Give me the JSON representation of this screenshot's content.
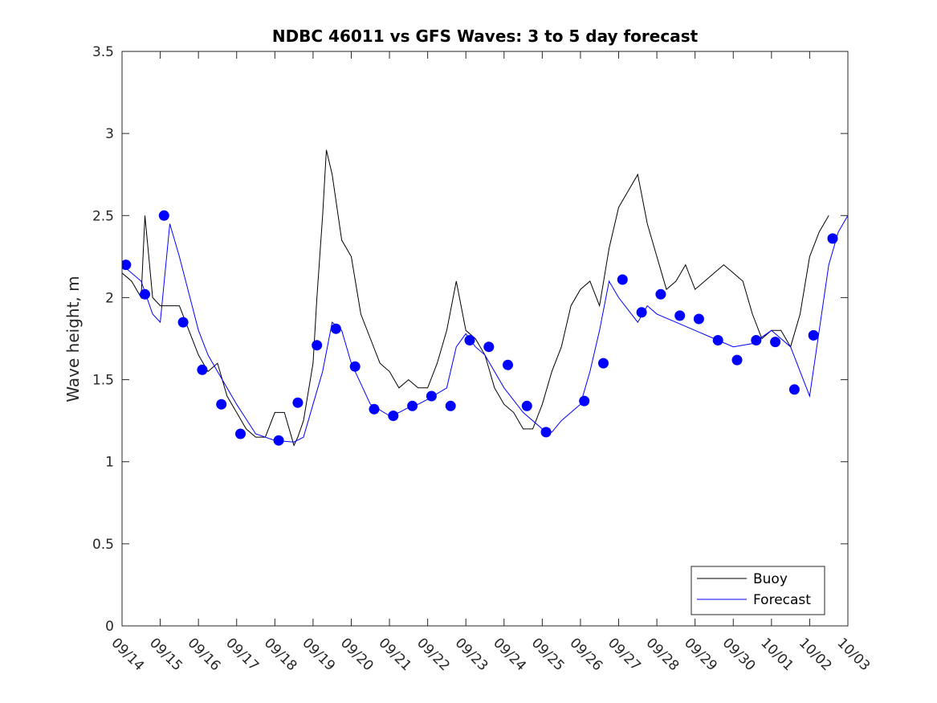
{
  "chart_data": {
    "type": "line",
    "title": "NDBC 46011 vs GFS Waves: 3 to 5 day forecast",
    "xlabel": "",
    "ylabel": "Wave height, m",
    "xlim": [
      0,
      19
    ],
    "ylim": [
      0,
      3.5
    ],
    "x_unit": "days since 09/14",
    "y_ticks": [
      0,
      0.5,
      1,
      1.5,
      2,
      2.5,
      3,
      3.5
    ],
    "y_tick_labels": [
      "0",
      "0.5",
      "1",
      "1.5",
      "2",
      "2.5",
      "3",
      "3.5"
    ],
    "x_ticks": [
      0,
      1,
      2,
      3,
      4,
      5,
      6,
      7,
      8,
      9,
      10,
      11,
      12,
      13,
      14,
      15,
      16,
      17,
      18,
      19
    ],
    "x_tick_labels": [
      "09/14",
      "09/15",
      "09/16",
      "09/17",
      "09/18",
      "09/19",
      "09/20",
      "09/21",
      "09/22",
      "09/23",
      "09/24",
      "09/25",
      "09/26",
      "09/27",
      "09/28",
      "09/29",
      "09/30",
      "10/01",
      "10/02",
      "10/03"
    ],
    "legend": {
      "position": "bottom-right",
      "entries": [
        "Buoy",
        "Forecast"
      ]
    },
    "series": [
      {
        "name": "Buoy",
        "color": "#000000",
        "style": "line",
        "x": [
          0,
          0.25,
          0.5,
          0.6,
          0.8,
          1.0,
          1.5,
          1.75,
          2.0,
          2.25,
          2.5,
          2.75,
          3.0,
          3.25,
          3.5,
          3.75,
          4.0,
          4.25,
          4.5,
          4.6,
          4.75,
          5.0,
          5.1,
          5.25,
          5.35,
          5.5,
          5.75,
          6.0,
          6.25,
          6.5,
          6.75,
          7.0,
          7.25,
          7.5,
          7.75,
          8.0,
          8.25,
          8.5,
          8.75,
          9.0,
          9.25,
          9.5,
          9.75,
          10.0,
          10.25,
          10.5,
          10.75,
          11.0,
          11.25,
          11.5,
          11.75,
          12.0,
          12.25,
          12.5,
          12.75,
          13.0,
          13.25,
          13.5,
          13.75,
          14.0,
          14.25,
          14.5,
          14.75,
          15.0,
          15.25,
          15.5,
          15.75,
          16.0,
          16.25,
          16.5,
          16.75,
          17.0,
          17.25,
          17.5,
          17.75,
          18.0,
          18.25,
          18.5
        ],
        "y": [
          2.15,
          2.1,
          2.0,
          2.5,
          2.0,
          1.95,
          1.95,
          1.8,
          1.65,
          1.55,
          1.6,
          1.4,
          1.3,
          1.2,
          1.15,
          1.15,
          1.3,
          1.3,
          1.1,
          1.15,
          1.25,
          1.6,
          2.0,
          2.5,
          2.9,
          2.75,
          2.35,
          2.25,
          1.9,
          1.75,
          1.6,
          1.55,
          1.45,
          1.5,
          1.45,
          1.45,
          1.6,
          1.8,
          2.1,
          1.8,
          1.75,
          1.65,
          1.45,
          1.35,
          1.3,
          1.2,
          1.2,
          1.35,
          1.55,
          1.7,
          1.95,
          2.05,
          2.1,
          1.95,
          2.3,
          2.55,
          2.65,
          2.75,
          2.45,
          2.25,
          2.05,
          2.1,
          2.2,
          2.05,
          2.1,
          2.15,
          2.2,
          2.15,
          2.1,
          1.9,
          1.75,
          1.8,
          1.8,
          1.7,
          1.9,
          2.25,
          2.4,
          2.5
        ]
      },
      {
        "name": "Forecast",
        "color": "#0000ff",
        "style": "line",
        "x": [
          0,
          0.5,
          0.8,
          1.0,
          1.25,
          1.5,
          2.0,
          2.25,
          2.5,
          3.0,
          3.5,
          4.0,
          4.5,
          4.75,
          5.0,
          5.25,
          5.5,
          5.75,
          6.0,
          6.5,
          7.0,
          7.25,
          7.5,
          7.75,
          8.0,
          8.5,
          8.75,
          9.0,
          9.25,
          9.5,
          10.0,
          10.5,
          11.0,
          11.25,
          11.5,
          12.0,
          12.25,
          12.5,
          12.75,
          13.0,
          13.5,
          13.75,
          14.0,
          14.5,
          15.0,
          15.5,
          16.0,
          16.5,
          17.0,
          17.5,
          18.0,
          18.25,
          18.5,
          18.75,
          19.0
        ],
        "y": [
          2.2,
          2.1,
          1.9,
          1.85,
          2.45,
          2.25,
          1.8,
          1.65,
          1.55,
          1.35,
          1.17,
          1.13,
          1.12,
          1.15,
          1.35,
          1.55,
          1.85,
          1.8,
          1.6,
          1.35,
          1.28,
          1.3,
          1.33,
          1.35,
          1.38,
          1.45,
          1.7,
          1.78,
          1.7,
          1.65,
          1.45,
          1.3,
          1.2,
          1.18,
          1.25,
          1.35,
          1.55,
          1.8,
          2.1,
          2.0,
          1.85,
          1.95,
          1.9,
          1.85,
          1.8,
          1.75,
          1.7,
          1.72,
          1.8,
          1.7,
          1.4,
          1.8,
          2.2,
          2.4,
          2.5
        ]
      },
      {
        "name": "Forecast markers",
        "color": "#0000ff",
        "style": "markers",
        "x": [
          0.1,
          0.6,
          1.1,
          1.6,
          2.1,
          2.6,
          3.1,
          4.1,
          4.6,
          5.1,
          5.6,
          6.1,
          6.6,
          7.1,
          7.6,
          8.1,
          8.6,
          9.1,
          9.6,
          10.1,
          10.6,
          11.1,
          12.1,
          12.6,
          13.1,
          13.6,
          14.1,
          14.6,
          15.1,
          15.6,
          16.1,
          16.6,
          17.1,
          17.6,
          18.1,
          18.6
        ],
        "y": [
          2.2,
          2.02,
          2.5,
          1.85,
          1.56,
          1.35,
          1.17,
          1.13,
          1.36,
          1.71,
          1.81,
          1.58,
          1.32,
          1.28,
          1.34,
          1.4,
          1.34,
          1.74,
          1.7,
          1.59,
          1.34,
          1.18,
          1.37,
          1.6,
          2.11,
          1.91,
          2.02,
          1.89,
          1.87,
          1.74,
          1.62,
          1.74,
          1.73,
          1.44,
          1.77,
          2.36
        ]
      }
    ]
  }
}
